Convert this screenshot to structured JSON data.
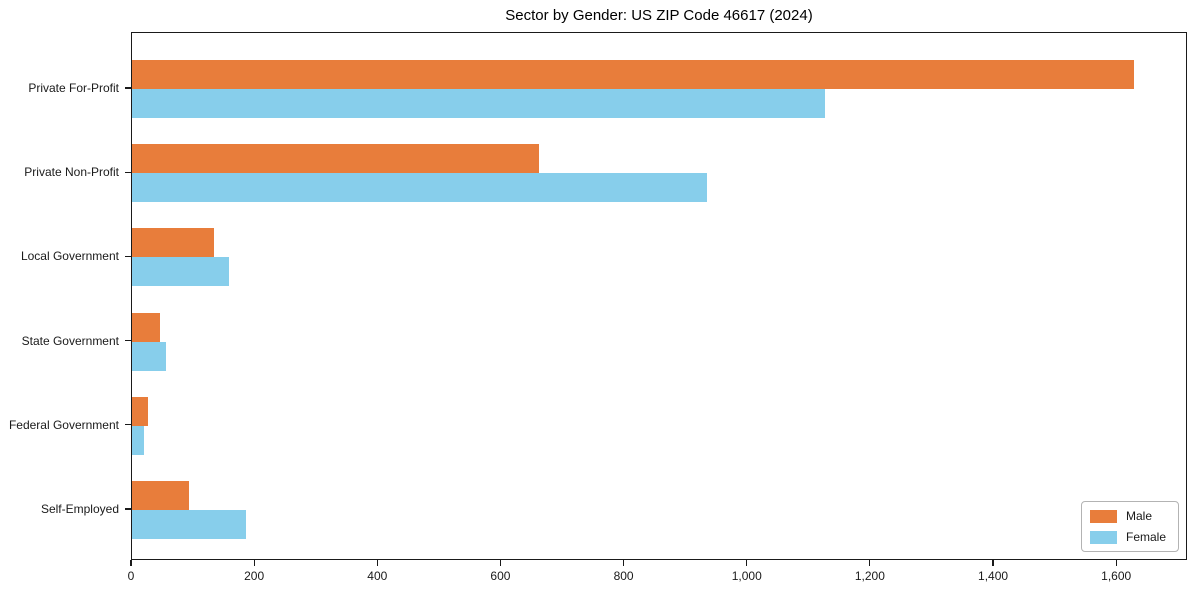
{
  "title": "Sector by Gender: US ZIP Code 46617 (2024)",
  "chart_data": {
    "type": "bar",
    "orientation": "horizontal",
    "title": "Sector by Gender: US ZIP Code 46617 (2024)",
    "xlabel": "",
    "ylabel": "",
    "categories": [
      "Private For-Profit",
      "Private Non-Profit",
      "Local Government",
      "State Government",
      "Federal Government",
      "Self-Employed"
    ],
    "series": [
      {
        "name": "Male",
        "color": "#e87d3b",
        "values": [
          1630,
          662,
          133,
          45,
          26,
          93
        ]
      },
      {
        "name": "Female",
        "color": "#87ceeb",
        "values": [
          1128,
          936,
          158,
          55,
          19,
          185
        ]
      }
    ],
    "xlim": [
      0,
      1715
    ],
    "xticks": [
      0,
      200,
      400,
      600,
      800,
      1000,
      1200,
      1400,
      1600
    ],
    "xtick_labels": [
      "0",
      "200",
      "400",
      "600",
      "800",
      "1,000",
      "1,200",
      "1,400",
      "1,600"
    ],
    "grid": false,
    "legend": {
      "position": "lower right",
      "entries": [
        "Male",
        "Female"
      ]
    }
  }
}
